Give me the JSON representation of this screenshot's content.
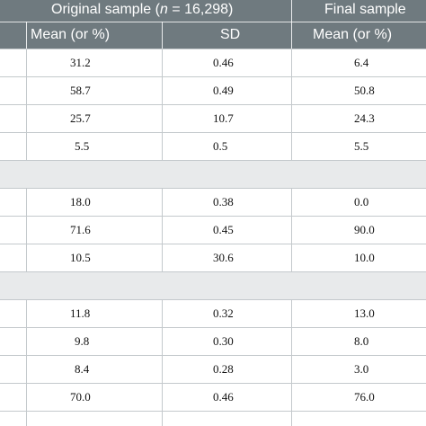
{
  "header": {
    "group1_label": "Original sample (",
    "group1_n": "n",
    "group1_rest": " = 16,298)",
    "group2_label": "Final sample",
    "col_mean1": "Mean (or %)",
    "col_sd1": "SD",
    "col_mean2": "Mean (or %)"
  },
  "rows": [
    {
      "mean1": "31.2",
      "sd": "0.46",
      "mean2": "6.4"
    },
    {
      "mean1": "58.7",
      "sd": "0.49",
      "mean2": "50.8"
    },
    {
      "mean1": "25.7",
      "sd": "10.7",
      "mean2": "24.3"
    },
    {
      "mean1": "5.5",
      "sd": "0.5",
      "mean2": "5.5"
    },
    {
      "mean1": "",
      "sd": "",
      "mean2": ""
    },
    {
      "mean1": "18.0",
      "sd": "0.38",
      "mean2": "0.0"
    },
    {
      "mean1": "71.6",
      "sd": "0.45",
      "mean2": "90.0"
    },
    {
      "mean1": "10.5",
      "sd": "30.6",
      "mean2": "10.0"
    },
    {
      "mean1": "",
      "sd": "",
      "mean2": ""
    },
    {
      "mean1": "11.8",
      "sd": "0.32",
      "mean2": "13.0"
    },
    {
      "mean1": "9.8",
      "sd": "0.30",
      "mean2": "8.0"
    },
    {
      "mean1": "8.4",
      "sd": "0.28",
      "mean2": "3.0"
    },
    {
      "mean1": "70.0",
      "sd": "0.46",
      "mean2": "76.0"
    }
  ]
}
